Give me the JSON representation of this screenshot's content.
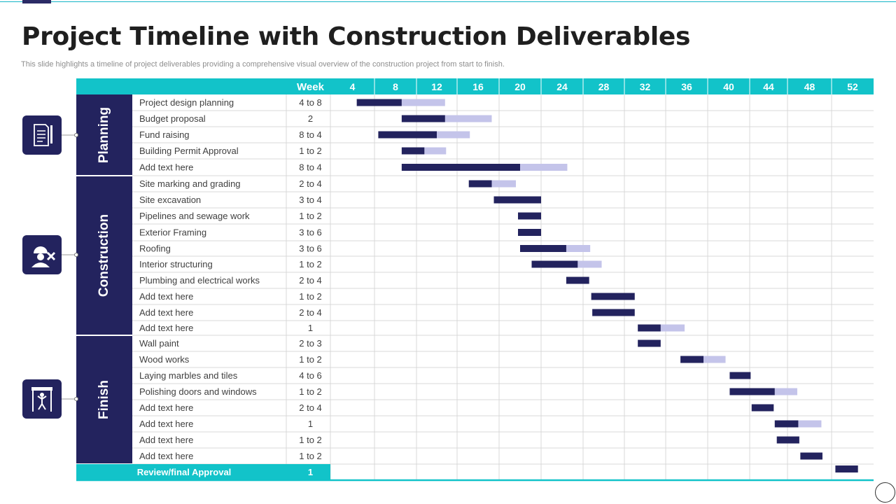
{
  "title": "Project Timeline with Construction Deliverables",
  "subtitle": "This slide highlights a timeline of project deliverables providing a comprehensive visual overview of the construction project from start to finish.",
  "colors": {
    "teal": "#12c3c9",
    "navy": "#23235e",
    "lavender": "#c4c4ea",
    "grid": "#d9d9d9"
  },
  "icons": [
    "document-pen-icon",
    "construction-worker-tools-icon",
    "finish-line-runner-icon"
  ],
  "chart_data": {
    "type": "gantt",
    "week_header": "Week",
    "weeks": [
      "4",
      "8",
      "12",
      "16",
      "20",
      "24",
      "28",
      "32",
      "36",
      "40",
      "44",
      "48",
      "52"
    ],
    "phases": [
      {
        "name": "Planning",
        "icon": "document-pen-icon",
        "tasks": [
          {
            "name": "Project design planning",
            "duration": "4 to 8",
            "start": 4.4,
            "end": 8.6,
            "planned_end": 12.8
          },
          {
            "name": "Budget proposal",
            "duration": "2",
            "start": 8.6,
            "end": 12.8,
            "planned_end": 17.3
          },
          {
            "name": "Fund raising",
            "duration": "8 to 4",
            "start": 6.4,
            "end": 12.0,
            "planned_end": 15.2
          },
          {
            "name": "Building Permit Approval",
            "duration": "1 to 2",
            "start": 8.6,
            "end": 10.8,
            "planned_end": 12.9
          },
          {
            "name": "Add text here",
            "duration": "8 to 4",
            "start": 8.6,
            "end": 20.0,
            "planned_end": 24.5
          }
        ]
      },
      {
        "name": "Construction",
        "icon": "construction-worker-tools-icon",
        "tasks": [
          {
            "name": "Site marking and grading",
            "duration": "2 to 4",
            "start": 15.1,
            "end": 17.3,
            "planned_end": 19.6
          },
          {
            "name": "Site excavation",
            "duration": "3 to 4",
            "start": 17.5,
            "end": 22.0,
            "planned_end": null
          },
          {
            "name": "Pipelines and sewage work",
            "duration": "1 to 2",
            "start": 19.8,
            "end": 22.0,
            "planned_end": null
          },
          {
            "name": "Exterior Framing",
            "duration": "3 to 6",
            "start": null,
            "end": null,
            "planned_end": null
          },
          {
            "name": "Roofing",
            "duration": "3 to 6",
            "start": 20.0,
            "end": 24.4,
            "planned_end": 26.7
          },
          {
            "name": "Interior structuring",
            "duration": "1 to 2",
            "start": 21.1,
            "end": 25.5,
            "planned_end": 27.8
          },
          {
            "name": "Plumbing and electrical works",
            "duration": "2 to 4",
            "start": 24.4,
            "end": 26.6,
            "planned_end": null
          },
          {
            "name": "Add text here",
            "duration": "1 to 2",
            "start": 26.8,
            "end": 31.0,
            "planned_end": null
          },
          {
            "name": "Add text here",
            "duration": "2 to 4",
            "start": 26.9,
            "end": 31.0,
            "planned_end": null
          },
          {
            "name": "Add text here",
            "duration": "1",
            "start": 31.3,
            "end": 33.5,
            "planned_end": 35.8
          }
        ]
      },
      {
        "name": "Finish",
        "icon": "finish-line-runner-icon",
        "tasks": [
          {
            "name": "Wall paint",
            "duration": "2 to 3",
            "start": 31.3,
            "end": 33.5,
            "planned_end": null
          },
          {
            "name": "Wood works",
            "duration": "1 to 2",
            "start": 35.4,
            "end": 37.6,
            "planned_end": 39.7
          },
          {
            "name": "Laying marbles and tiles",
            "duration": "4 to 6",
            "start": 40.1,
            "end": 42.2,
            "planned_end": null
          },
          {
            "name": "Polishing doors and windows",
            "duration": "1 to 2",
            "start": 40.1,
            "end": 44.6,
            "planned_end": 46.8
          },
          {
            "name": "Add text here",
            "duration": "2 to 4",
            "start": 42.3,
            "end": 44.5,
            "planned_end": null
          },
          {
            "name": "Add text here",
            "duration": "1",
            "start": 44.6,
            "end": 46.9,
            "planned_end": 49.1
          },
          {
            "name": "Add text here",
            "duration": "1 to 2",
            "start": 44.8,
            "end": 47.0,
            "planned_end": null
          },
          {
            "name": "Add text here",
            "duration": "1 to 2",
            "start": 47.1,
            "end": 49.2,
            "planned_end": null
          }
        ]
      }
    ],
    "footer": {
      "name": "Review/final Approval",
      "duration": "1",
      "start": 50.4,
      "end": 52.5,
      "planned_end": null
    },
    "extra_bars": [
      {
        "row": 8,
        "start": 19.8,
        "end": 22.0
      }
    ]
  }
}
